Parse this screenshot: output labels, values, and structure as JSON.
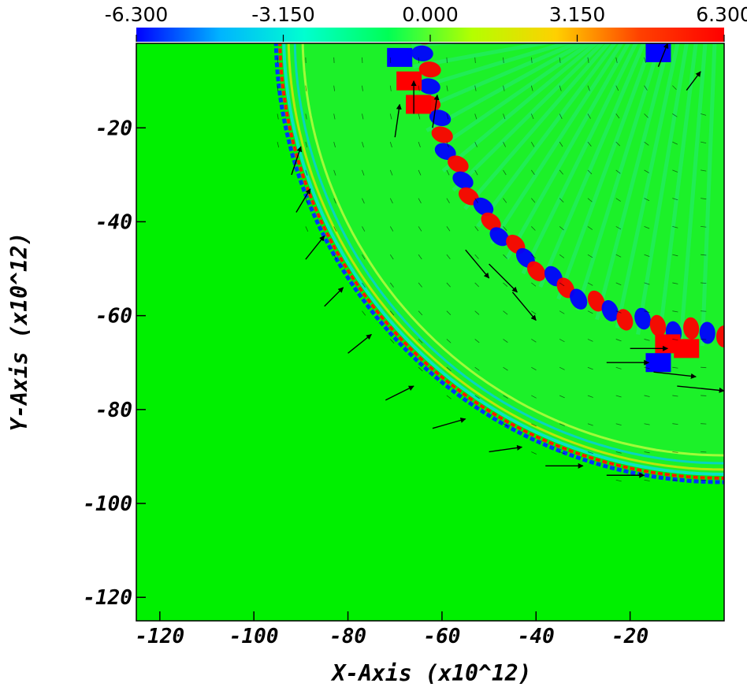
{
  "chart_data": {
    "type": "heatmap",
    "title": "",
    "xlabel": "X-Axis (x10^12)",
    "ylabel": "Y-Axis (x10^12)",
    "xlim": [
      -125,
      0
    ],
    "ylim": [
      -125,
      -2
    ],
    "x_ticks": [
      -120,
      -100,
      -80,
      -60,
      -40,
      -20
    ],
    "x_tick_labels": [
      "-120",
      "-100",
      "-80",
      "-60",
      "-40",
      "-20"
    ],
    "y_ticks": [
      -20,
      -40,
      -60,
      -80,
      -100,
      -120
    ],
    "y_tick_labels": [
      "-20",
      "-40",
      "-60",
      "-80",
      "-100",
      "-120"
    ],
    "colorbar": {
      "placement": "top",
      "range": [
        -6.3,
        6.3
      ],
      "ticks": [
        -6.3,
        -3.15,
        0,
        3.15,
        6.3
      ],
      "tick_labels": [
        "-6.300",
        "-3.150",
        "0.000",
        "3.150",
        "6.300"
      ],
      "colormap": [
        "#0000ff",
        "#00b4ff",
        "#00ffd0",
        "#00ff55",
        "#b4ff00",
        "#ffd000",
        "#ff4000",
        "#ff0000"
      ]
    },
    "background_color": "#00f000",
    "grid": false,
    "vector_field": true,
    "features": {
      "outer_shell_radius": 95,
      "inner_band_radius": 70,
      "center": [
        0,
        0
      ]
    }
  }
}
